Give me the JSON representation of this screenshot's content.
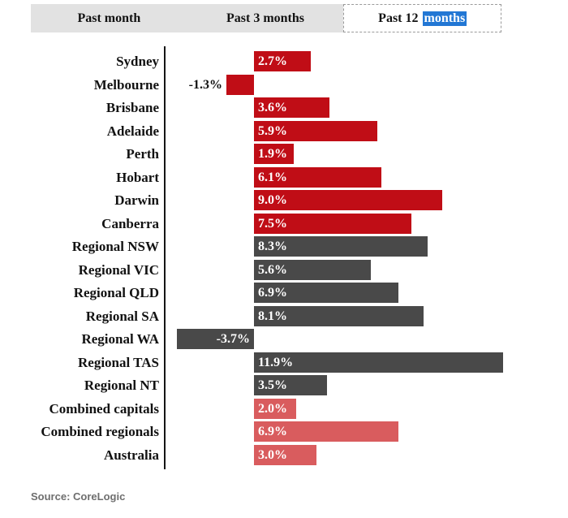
{
  "tabs": {
    "items": [
      {
        "label": "Past month",
        "selected": false
      },
      {
        "label": "Past 3 months",
        "selected": false
      },
      {
        "label": "Past 12 months",
        "label_prefix": "Past 12",
        "label_highlight": "months",
        "selected": true
      }
    ]
  },
  "chart_data": {
    "type": "bar",
    "orientation": "horizontal",
    "unit": "%",
    "title": "",
    "xlabel": "",
    "ylabel": "",
    "value_axis_labels": "none",
    "legend": "none",
    "categories": [
      "Sydney",
      "Melbourne",
      "Brisbane",
      "Adelaide",
      "Perth",
      "Hobart",
      "Darwin",
      "Canberra",
      "Regional NSW",
      "Regional VIC",
      "Regional QLD",
      "Regional SA",
      "Regional WA",
      "Regional TAS",
      "Regional NT",
      "Combined capitals",
      "Combined regionals",
      "Australia"
    ],
    "values": [
      2.7,
      -1.3,
      3.6,
      5.9,
      1.9,
      6.1,
      9.0,
      7.5,
      8.3,
      5.6,
      6.9,
      8.1,
      -3.7,
      11.9,
      3.5,
      2.0,
      6.9,
      3.0
    ],
    "colors": {
      "capital": "#c00d16",
      "regional": "#494949",
      "combined": "#d95c5e"
    },
    "rows": [
      {
        "label": "Sydney",
        "value": 2.7,
        "value_label": "2.7%",
        "group": "capital",
        "value_label_position": "inside"
      },
      {
        "label": "Melbourne",
        "value": -1.3,
        "value_label": "-1.3%",
        "group": "capital",
        "value_label_position": "outside"
      },
      {
        "label": "Brisbane",
        "value": 3.6,
        "value_label": "3.6%",
        "group": "capital",
        "value_label_position": "inside"
      },
      {
        "label": "Adelaide",
        "value": 5.9,
        "value_label": "5.9%",
        "group": "capital",
        "value_label_position": "inside"
      },
      {
        "label": "Perth",
        "value": 1.9,
        "value_label": "1.9%",
        "group": "capital",
        "value_label_position": "inside"
      },
      {
        "label": "Hobart",
        "value": 6.1,
        "value_label": "6.1%",
        "group": "capital",
        "value_label_position": "inside"
      },
      {
        "label": "Darwin",
        "value": 9.0,
        "value_label": "9.0%",
        "group": "capital",
        "value_label_position": "inside"
      },
      {
        "label": "Canberra",
        "value": 7.5,
        "value_label": "7.5%",
        "group": "capital",
        "value_label_position": "inside"
      },
      {
        "label": "Regional NSW",
        "value": 8.3,
        "value_label": "8.3%",
        "group": "regional",
        "value_label_position": "inside"
      },
      {
        "label": "Regional VIC",
        "value": 5.6,
        "value_label": "5.6%",
        "group": "regional",
        "value_label_position": "inside"
      },
      {
        "label": "Regional QLD",
        "value": 6.9,
        "value_label": "6.9%",
        "group": "regional",
        "value_label_position": "inside"
      },
      {
        "label": "Regional SA",
        "value": 8.1,
        "value_label": "8.1%",
        "group": "regional",
        "value_label_position": "inside"
      },
      {
        "label": "Regional WA",
        "value": -3.7,
        "value_label": "-3.7%",
        "group": "regional",
        "value_label_position": "inside"
      },
      {
        "label": "Regional TAS",
        "value": 11.9,
        "value_label": "11.9%",
        "group": "regional",
        "value_label_position": "inside"
      },
      {
        "label": "Regional NT",
        "value": 3.5,
        "value_label": "3.5%",
        "group": "regional",
        "value_label_position": "inside"
      },
      {
        "label": "Combined capitals",
        "value": 2.0,
        "value_label": "2.0%",
        "group": "combined",
        "value_label_position": "inside"
      },
      {
        "label": "Combined regionals",
        "value": 6.9,
        "value_label": "6.9%",
        "group": "combined",
        "value_label_position": "inside"
      },
      {
        "label": "Australia",
        "value": 3.0,
        "value_label": "3.0%",
        "group": "combined",
        "value_label_position": "inside"
      }
    ]
  },
  "source": "Source: CoreLogic"
}
